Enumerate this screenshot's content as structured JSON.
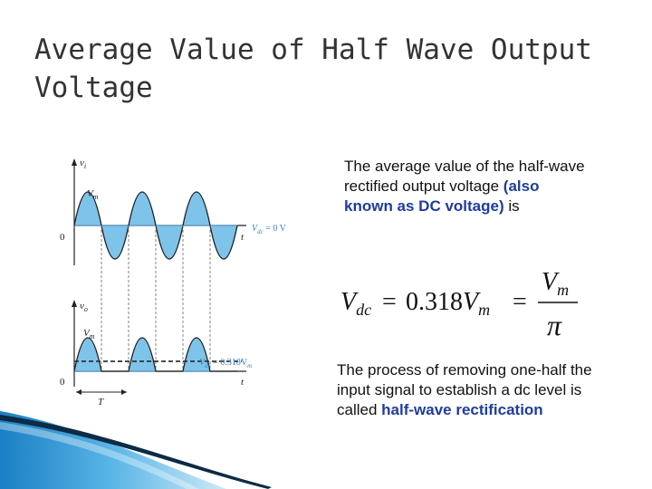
{
  "slide": {
    "title": "Average Value of Half Wave Output Voltage",
    "para1": {
      "text_before": "The average value of the half-wave rectified output voltage ",
      "highlight": "(also known as DC voltage)",
      "text_after": " is"
    },
    "formula": {
      "lhs": "V",
      "lhs_sub": "dc",
      "eq": "=",
      "coef": "0.318",
      "vm": "V",
      "vm_sub": "m",
      "eq2": "=",
      "frac_num": "V",
      "frac_num_sub": "m",
      "frac_den": "π"
    },
    "para2": {
      "text_before": "The process of removing one-half the input signal to establish a dc level is called ",
      "highlight": "half-wave rectification",
      "text_after": ""
    }
  },
  "figure": {
    "top_plot": {
      "axis_label": "v",
      "axis_label_sub": "i",
      "peak_label": "V",
      "peak_label_sub": "m",
      "origin": "0",
      "t_label": "t",
      "dc_label_v": "V",
      "dc_label_sub": "dc",
      "dc_label_rest": " = 0 V"
    },
    "bottom_plot": {
      "axis_label": "v",
      "axis_label_sub": "o",
      "peak_label": "V",
      "peak_label_sub": "m",
      "origin": "0",
      "t_label": "t",
      "period_label": "T",
      "dc_label_v": "V",
      "dc_label_sub": "dc",
      "dc_label_rest": " = 0.318V",
      "dc_label_tail_sub": "m"
    },
    "colors": {
      "fill": "#7ec4ea",
      "axis": "#222222",
      "dashed": "#555555"
    }
  },
  "theme": {
    "title_color": "#333333",
    "highlight_color": "#1f3c9e",
    "deco_blue": "#1b84c8"
  }
}
